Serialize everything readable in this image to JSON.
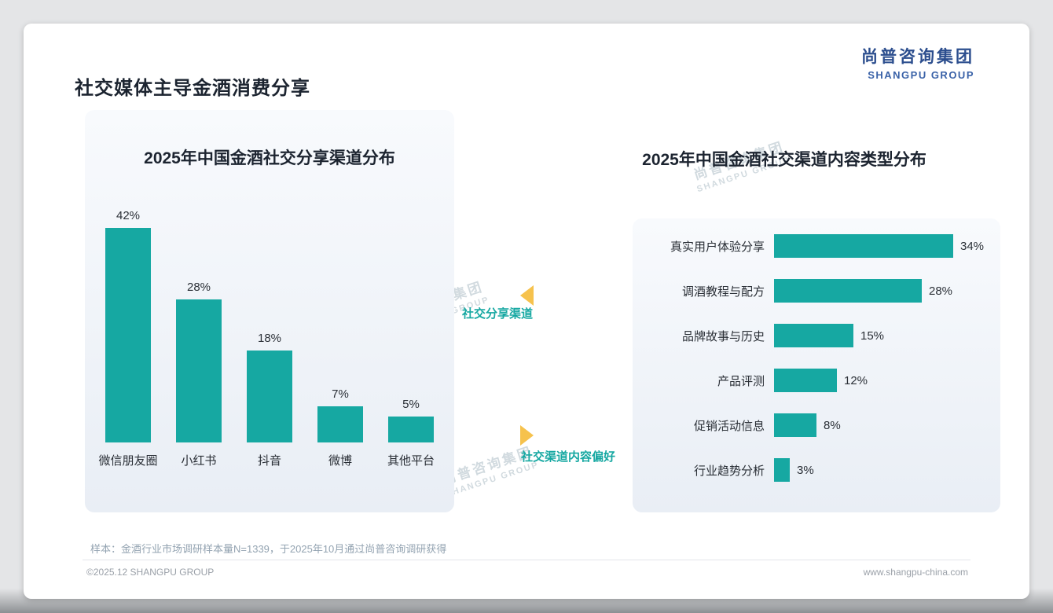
{
  "page": {
    "title": "社交媒体主导金酒消费分享",
    "sample_note": "样本：金酒行业市场调研样本量N=1339，于2025年10月通过尚普咨询调研获得",
    "footer_left": "©2025.12 SHANGPU GROUP",
    "footer_right": "www.shangpu-china.com"
  },
  "logo": {
    "cn": "尚普咨询集团",
    "en": "SHANGPU GROUP"
  },
  "watermark": {
    "cn": "尚普咨询集团",
    "en": "SHANGPU GROUP"
  },
  "annotations": {
    "left_chart_label": "社交分享渠道",
    "right_chart_label": "社交渠道内容偏好"
  },
  "colors": {
    "teal": "#16A8A2",
    "navy": "#2C4E8E",
    "yellow": "#F6C24D"
  },
  "chart_data": [
    {
      "type": "bar",
      "orientation": "vertical",
      "title": "2025年中国金酒社交分享渠道分布",
      "categories": [
        "微信朋友圈",
        "小红书",
        "抖音",
        "微博",
        "其他平台"
      ],
      "values": [
        42,
        28,
        18,
        7,
        5
      ],
      "unit": "%",
      "ylim": [
        0,
        45
      ],
      "grid": false,
      "legend": false,
      "bar_color": "#16A8A2"
    },
    {
      "type": "bar",
      "orientation": "horizontal",
      "title": "2025年中国金酒社交渠道内容类型分布",
      "categories": [
        "真实用户体验分享",
        "调酒教程与配方",
        "品牌故事与历史",
        "产品评测",
        "促销活动信息",
        "行业趋势分析"
      ],
      "values": [
        34,
        28,
        15,
        12,
        8,
        3
      ],
      "unit": "%",
      "xlim": [
        0,
        40
      ],
      "grid": false,
      "legend": false,
      "bar_color": "#16A8A2"
    }
  ]
}
